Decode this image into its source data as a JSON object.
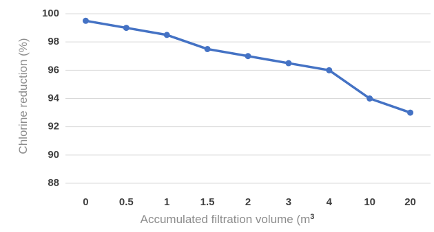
{
  "chart_data": {
    "type": "line",
    "title": "",
    "xlabel": "Accumulated filtration volume (m",
    "xlabel_superscript": "3",
    "ylabel": "Chlorine reduction (%)",
    "categories": [
      "0",
      "0.5",
      "1",
      "1.5",
      "2",
      "3",
      "4",
      "10",
      "20"
    ],
    "series": [
      {
        "values": [
          99.5,
          99.0,
          98.5,
          97.5,
          97.0,
          96.5,
          96.0,
          94.0,
          93.0
        ]
      }
    ],
    "ylim": [
      88,
      100
    ],
    "yticks": [
      "88",
      "90",
      "92",
      "94",
      "96",
      "98",
      "100"
    ],
    "grid": true,
    "legend": "none",
    "colors": {
      "series": "#4472c4",
      "grid": "#d9d9d9",
      "tick_text": "#404040",
      "axis_title": "#8c8c8c"
    }
  }
}
